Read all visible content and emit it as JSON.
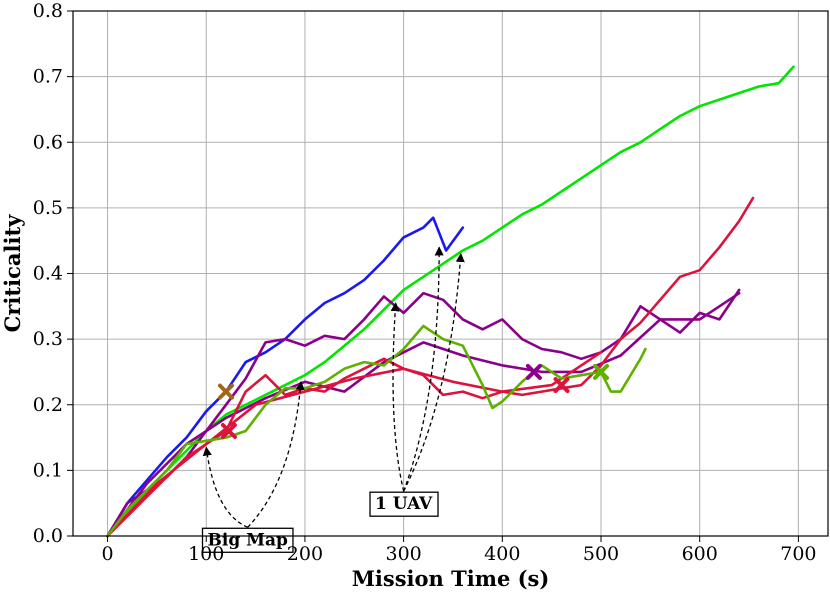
{
  "chart_data": {
    "type": "line",
    "title": "",
    "xlabel": "Mission Time (s)",
    "ylabel": "Criticality",
    "xlim": [
      -35,
      730
    ],
    "ylim": [
      0,
      0.8
    ],
    "xticks": [
      0,
      100,
      200,
      300,
      400,
      500,
      600,
      700
    ],
    "yticks": [
      0.0,
      0.1,
      0.2,
      0.3,
      0.4,
      0.5,
      0.6,
      0.7,
      0.8
    ],
    "xtick_labels": [
      "0",
      "100",
      "200",
      "300",
      "400",
      "500",
      "600",
      "700"
    ],
    "ytick_labels": [
      "0.0",
      "0.1",
      "0.2",
      "0.3",
      "0.4",
      "0.5",
      "0.6",
      "0.7",
      "0.8"
    ],
    "grid": true,
    "legend": "none",
    "series": [
      {
        "color": "#00e600",
        "x": [
          0,
          20,
          40,
          60,
          80,
          100,
          120,
          140,
          160,
          180,
          200,
          220,
          240,
          260,
          280,
          300,
          320,
          340,
          360,
          380,
          400,
          420,
          440,
          460,
          480,
          500,
          520,
          540,
          560,
          580,
          600,
          620,
          640,
          660,
          680,
          695
        ],
        "y": [
          0,
          0.035,
          0.07,
          0.1,
          0.13,
          0.16,
          0.185,
          0.2,
          0.215,
          0.23,
          0.245,
          0.265,
          0.29,
          0.315,
          0.345,
          0.375,
          0.395,
          0.415,
          0.435,
          0.45,
          0.47,
          0.49,
          0.505,
          0.525,
          0.545,
          0.565,
          0.585,
          0.6,
          0.62,
          0.64,
          0.655,
          0.665,
          0.675,
          0.685,
          0.69,
          0.715
        ]
      },
      {
        "color": "#1a1aee",
        "x": [
          0,
          20,
          40,
          60,
          80,
          100,
          120,
          140,
          160,
          180,
          200,
          220,
          240,
          260,
          280,
          300,
          320,
          330,
          343,
          360
        ],
        "y": [
          0,
          0.05,
          0.085,
          0.12,
          0.15,
          0.19,
          0.22,
          0.265,
          0.28,
          0.3,
          0.33,
          0.355,
          0.37,
          0.39,
          0.42,
          0.455,
          0.47,
          0.485,
          0.435,
          0.47
        ]
      },
      {
        "color": "#8b008b",
        "x": [
          0,
          20,
          40,
          60,
          80,
          100,
          120,
          140,
          160,
          180,
          200,
          220,
          240,
          260,
          280,
          300,
          320,
          340,
          360,
          380,
          400,
          420,
          440,
          460,
          480,
          500,
          520,
          540,
          560,
          580,
          600,
          620,
          640
        ],
        "y": [
          0,
          0.05,
          0.07,
          0.09,
          0.12,
          0.16,
          0.2,
          0.24,
          0.295,
          0.3,
          0.29,
          0.305,
          0.3,
          0.33,
          0.365,
          0.34,
          0.37,
          0.36,
          0.33,
          0.315,
          0.33,
          0.3,
          0.285,
          0.28,
          0.27,
          0.28,
          0.3,
          0.35,
          0.33,
          0.31,
          0.34,
          0.33,
          0.375
        ]
      },
      {
        "color": "#8b008b",
        "x": [
          0,
          40,
          80,
          120,
          160,
          200,
          240,
          280,
          300,
          320,
          360,
          400,
          440,
          480,
          520,
          560,
          600,
          640
        ],
        "y": [
          0,
          0.08,
          0.14,
          0.18,
          0.21,
          0.235,
          0.22,
          0.265,
          0.28,
          0.295,
          0.275,
          0.26,
          0.25,
          0.25,
          0.275,
          0.33,
          0.33,
          0.37
        ]
      },
      {
        "color": "#dc143c",
        "x": [
          0,
          20,
          40,
          60,
          80,
          100,
          120,
          140,
          160,
          180,
          200,
          220,
          240,
          260,
          280,
          300,
          320,
          340,
          360,
          380,
          400,
          420,
          440,
          460,
          480,
          500,
          520,
          540,
          560,
          580,
          600,
          620,
          640,
          654
        ],
        "y": [
          0,
          0.03,
          0.06,
          0.09,
          0.12,
          0.14,
          0.16,
          0.22,
          0.245,
          0.215,
          0.225,
          0.22,
          0.24,
          0.255,
          0.27,
          0.255,
          0.245,
          0.215,
          0.22,
          0.21,
          0.22,
          0.215,
          0.22,
          0.225,
          0.23,
          0.26,
          0.3,
          0.325,
          0.36,
          0.395,
          0.405,
          0.44,
          0.48,
          0.515
        ]
      },
      {
        "color": "#dc143c",
        "x": [
          0,
          50,
          100,
          150,
          200,
          250,
          300,
          350,
          400,
          450,
          500
        ],
        "y": [
          0,
          0.08,
          0.14,
          0.2,
          0.22,
          0.24,
          0.255,
          0.235,
          0.22,
          0.23,
          0.28
        ]
      },
      {
        "color": "#5fb000",
        "x": [
          0,
          20,
          40,
          60,
          80,
          100,
          120,
          140,
          160,
          180,
          200,
          220,
          240,
          260,
          280,
          300,
          320,
          340,
          360,
          380,
          390,
          400,
          420,
          440,
          460,
          480,
          500,
          510,
          520,
          530,
          540,
          545
        ],
        "y": [
          0,
          0.04,
          0.07,
          0.1,
          0.14,
          0.145,
          0.15,
          0.16,
          0.2,
          0.225,
          0.225,
          0.235,
          0.255,
          0.265,
          0.26,
          0.285,
          0.32,
          0.3,
          0.29,
          0.23,
          0.195,
          0.205,
          0.235,
          0.26,
          0.24,
          0.245,
          0.25,
          0.22,
          0.22,
          0.245,
          0.27,
          0.285
        ]
      }
    ],
    "markers": [
      {
        "x": 120,
        "y": 0.22,
        "color": "#a0661a"
      },
      {
        "x": 123,
        "y": 0.16,
        "color": "#dc143c"
      },
      {
        "x": 432,
        "y": 0.25,
        "color": "#8b008b"
      },
      {
        "x": 460,
        "y": 0.23,
        "color": "#dc143c"
      },
      {
        "x": 500,
        "y": 0.25,
        "color": "#5fb000"
      }
    ],
    "annotations": [
      {
        "text": "Big Map",
        "anchor": [
          142,
          -0.005
        ],
        "targets": [
          [
            100,
            0.135
          ],
          [
            196,
            0.235
          ]
        ]
      },
      {
        "text": "1 UAV",
        "anchor": [
          300,
          0.05
        ],
        "targets": [
          [
            292,
            0.355
          ],
          [
            336,
            0.44
          ],
          [
            358,
            0.43
          ]
        ]
      }
    ]
  }
}
